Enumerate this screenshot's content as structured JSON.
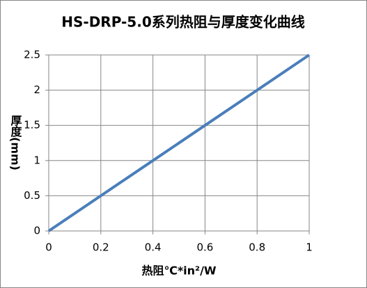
{
  "chart_data": {
    "type": "line",
    "title": "HS-DRP-5.0系列热阻与厚度变化曲线",
    "x_label": "热阻℃*in²/W",
    "y_label": "厚度(mm)",
    "x": [
      0,
      0.2,
      0.4,
      0.6,
      0.8,
      1
    ],
    "values": [
      0,
      0.5,
      1,
      1.5,
      2,
      2.5
    ],
    "color": "#4a7ebb",
    "xlim": [
      0,
      1
    ],
    "xticks": [
      0,
      0.2,
      0.4,
      0.6,
      0.8,
      1
    ],
    "ylim": [
      0,
      2.5
    ],
    "yticks": [
      0,
      0.5,
      1,
      1.5,
      2,
      2.5
    ],
    "grid": true
  }
}
